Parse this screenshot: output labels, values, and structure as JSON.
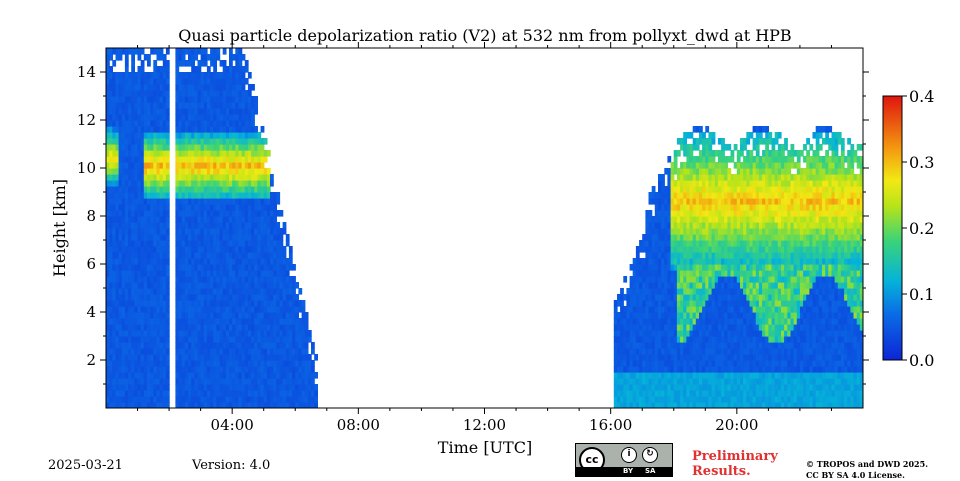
{
  "chart_data": {
    "type": "heatmap",
    "title": "Quasi particle depolarization ratio (V2) at 532 nm from pollyxt_dwd at HPB",
    "xlabel": "Time [UTC]",
    "ylabel": "Height [km]",
    "xlim": [
      0,
      24
    ],
    "ylim": [
      0,
      15
    ],
    "x_ticks": [
      4,
      8,
      12,
      16,
      20
    ],
    "x_tick_labels": [
      "04:00",
      "08:00",
      "12:00",
      "16:00",
      "20:00"
    ],
    "y_ticks": [
      2,
      4,
      6,
      8,
      10,
      12,
      14
    ],
    "y_tick_labels": [
      "2",
      "4",
      "6",
      "8",
      "10",
      "12",
      "14"
    ],
    "colorbar": {
      "min": 0.0,
      "max": 0.4,
      "ticks": [
        0.0,
        0.1,
        0.2,
        0.3,
        0.4
      ],
      "tick_labels": [
        "0.0",
        "0.1",
        "0.2",
        "0.3",
        "0.4"
      ],
      "colormap": "jet"
    },
    "data_gaps_utc": [
      [
        1.95,
        2.15
      ],
      [
        6.6,
        16.0
      ]
    ],
    "cloud_layers": [
      {
        "start": 1.2,
        "end": 5.1,
        "base_km": 8.8,
        "top_km": 11.1,
        "depol": 0.33
      },
      {
        "start": 0.0,
        "end": 0.4,
        "base_km": 9.3,
        "top_km": 11.3,
        "depol": 0.3
      },
      {
        "start": 17.8,
        "end": 24.0,
        "base_km": 6.0,
        "top_km": 11.0,
        "depol": 0.32
      }
    ],
    "background_depol": 0.04
  },
  "footer": {
    "date": "2025-03-21",
    "version": "Version: 4.0",
    "preliminary": [
      "Preliminary",
      "Results."
    ],
    "copyright": [
      "© TROPOS and DWD 2025.",
      "CC BY SA 4.0 License."
    ],
    "license_badge": {
      "main": "cc",
      "labels": [
        "BY",
        "SA"
      ]
    }
  },
  "colors": {
    "low": "#0a3fd8",
    "mid": "#3ccf40",
    "high": "#e8281a",
    "text_red": "#e03030"
  }
}
